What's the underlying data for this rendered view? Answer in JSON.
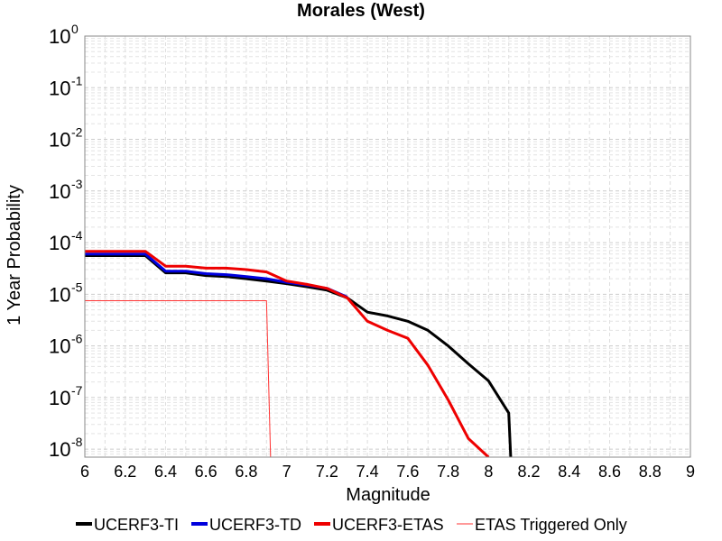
{
  "chart_data": {
    "type": "line",
    "title": "Morales (West)",
    "xlabel": "Magnitude",
    "ylabel": "1 Year Probability",
    "xlim": [
      6,
      9
    ],
    "ylim": [
      7e-09,
      1
    ],
    "yscale": "log",
    "grid": true,
    "legend_position": "bottom",
    "x_ticks": [
      "6",
      "6.2",
      "6.4",
      "6.6",
      "6.8",
      "7",
      "7.2",
      "7.4",
      "7.6",
      "7.8",
      "8",
      "8.2",
      "8.4",
      "8.6",
      "8.8",
      "9"
    ],
    "y_ticks": [
      {
        "base": "10",
        "exp": "0"
      },
      {
        "base": "10",
        "exp": "-1"
      },
      {
        "base": "10",
        "exp": "-2"
      },
      {
        "base": "10",
        "exp": "-3"
      },
      {
        "base": "10",
        "exp": "-4"
      },
      {
        "base": "10",
        "exp": "-5"
      },
      {
        "base": "10",
        "exp": "-6"
      },
      {
        "base": "10",
        "exp": "-7"
      },
      {
        "base": "10",
        "exp": "-8"
      }
    ],
    "series": [
      {
        "name": "UCERF3-TI",
        "color": "#000000",
        "width": 3,
        "x": [
          6.0,
          6.1,
          6.2,
          6.3,
          6.4,
          6.5,
          6.6,
          6.7,
          6.8,
          6.9,
          7.0,
          7.1,
          7.2,
          7.3,
          7.4,
          7.5,
          7.6,
          7.7,
          7.8,
          7.9,
          8.0,
          8.1,
          8.11
        ],
        "y": [
          5.6e-05,
          5.6e-05,
          5.6e-05,
          5.6e-05,
          2.6e-05,
          2.6e-05,
          2.3e-05,
          2.2e-05,
          2e-05,
          1.8e-05,
          1.6e-05,
          1.4e-05,
          1.2e-05,
          8.5e-06,
          4.5e-06,
          3.8e-06,
          3e-06,
          2e-06,
          1e-06,
          4.5e-07,
          2.1e-07,
          5e-08,
          7e-09
        ]
      },
      {
        "name": "UCERF3-TD",
        "color": "#0000dd",
        "width": 3,
        "x": [
          6.0,
          6.1,
          6.2,
          6.3,
          6.4,
          6.5,
          6.6,
          6.7,
          6.8,
          6.9,
          7.0,
          7.1,
          7.2,
          7.3
        ],
        "y": [
          6e-05,
          6e-05,
          6e-05,
          6e-05,
          2.8e-05,
          2.8e-05,
          2.5e-05,
          2.4e-05,
          2.2e-05,
          2e-05,
          1.7e-05,
          1.5e-05,
          1.3e-05,
          8.8e-06
        ]
      },
      {
        "name": "UCERF3-ETAS",
        "color": "#ee0000",
        "width": 3,
        "x": [
          6.0,
          6.1,
          6.2,
          6.3,
          6.4,
          6.5,
          6.6,
          6.7,
          6.8,
          6.9,
          7.0,
          7.1,
          7.2,
          7.3,
          7.4,
          7.5,
          7.6,
          7.7,
          7.8,
          7.9,
          8.0
        ],
        "y": [
          6.8e-05,
          6.8e-05,
          6.8e-05,
          6.8e-05,
          3.5e-05,
          3.5e-05,
          3.2e-05,
          3.2e-05,
          3e-05,
          2.7e-05,
          1.8e-05,
          1.55e-05,
          1.3e-05,
          8.5e-06,
          3e-06,
          2e-06,
          1.4e-06,
          4.2e-07,
          9e-08,
          1.6e-08,
          7e-09
        ]
      },
      {
        "name": "ETAS Triggered Only",
        "color": "#ff3333",
        "width": 1,
        "x": [
          6.0,
          6.1,
          6.2,
          6.3,
          6.4,
          6.5,
          6.6,
          6.7,
          6.8,
          6.9,
          6.92
        ],
        "y": [
          7.5e-06,
          7.5e-06,
          7.5e-06,
          7.5e-06,
          7.5e-06,
          7.5e-06,
          7.5e-06,
          7.5e-06,
          7.5e-06,
          7.5e-06,
          7e-09
        ]
      }
    ]
  }
}
